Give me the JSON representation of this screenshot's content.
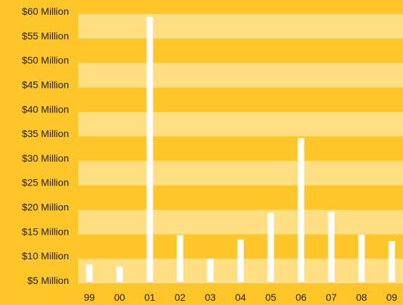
{
  "chart_data": {
    "type": "bar",
    "title": "",
    "xlabel": "",
    "ylabel": "",
    "categories": [
      "99",
      "00",
      "01",
      "02",
      "03",
      "04",
      "05",
      "06",
      "07",
      "08",
      "09"
    ],
    "values": [
      8.4,
      8.0,
      59.0,
      14.4,
      9.6,
      13.5,
      19.0,
      34.2,
      19.2,
      14.5,
      13.2
    ],
    "ylim": [
      4,
      60
    ],
    "y_ticks": [
      {
        "value": 60,
        "label": "$60 Million"
      },
      {
        "value": 55,
        "label": "$55 Million"
      },
      {
        "value": 50,
        "label": "$50 Million"
      },
      {
        "value": 45,
        "label": "$45 Million"
      },
      {
        "value": 40,
        "label": "$40 Million"
      },
      {
        "value": 35,
        "label": "$35 Million"
      },
      {
        "value": 30,
        "label": "$30 Million"
      },
      {
        "value": 25,
        "label": "$25 Million"
      },
      {
        "value": 20,
        "label": "$20 Million"
      },
      {
        "value": 15,
        "label": "$15 Million"
      },
      {
        "value": 10,
        "label": "$10 Million"
      },
      {
        "value": 5,
        "label": "$5 Million"
      }
    ],
    "grid": true,
    "legend": "none",
    "colors": {
      "background": "#ffc629",
      "band_light": "#ffdf83",
      "bar": "#ffffff",
      "text": "#1f1f1f"
    }
  }
}
